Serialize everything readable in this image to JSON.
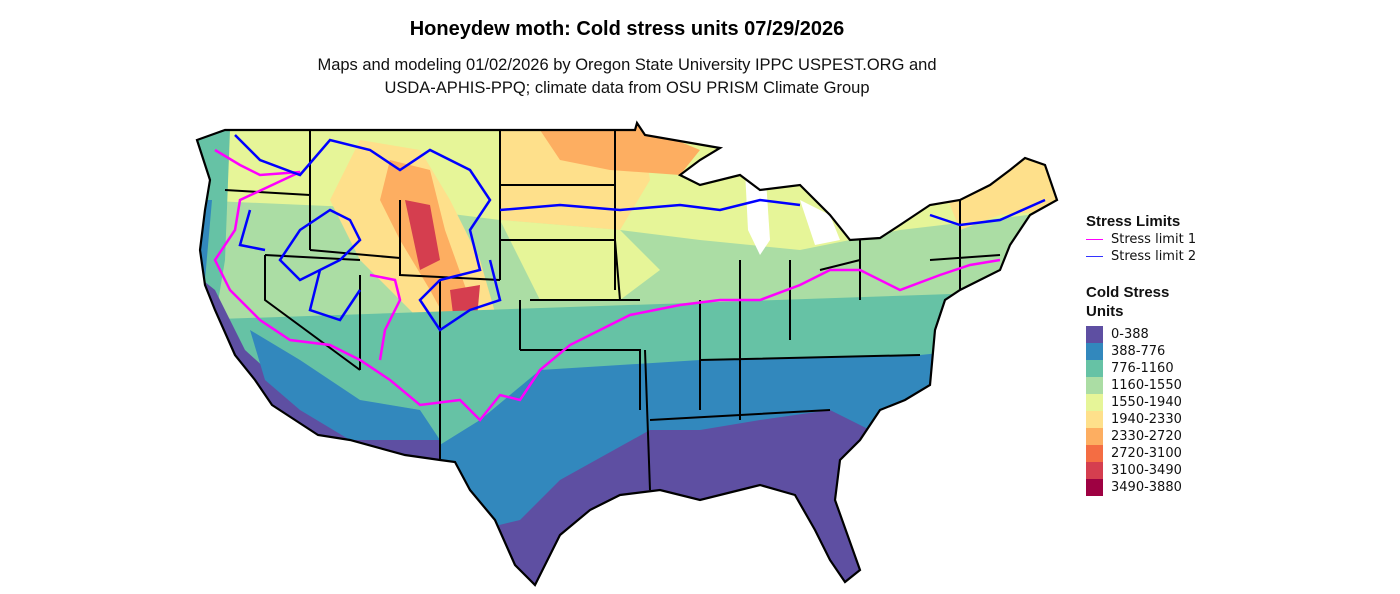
{
  "title": "Honeydew moth: Cold stress units 07/29/2026",
  "subtitle_line1": "Maps and modeling 01/02/2026 by Oregon State University IPPC USPEST.ORG and",
  "subtitle_line2": "USDA-APHIS-PPQ; climate data from OSU PRISM Climate Group",
  "stress_legend": {
    "title": "Stress Limits",
    "items": [
      {
        "label": "Stress limit 1",
        "color": "#FF00FF"
      },
      {
        "label": "Stress limit 2",
        "color": "#0000FF"
      }
    ]
  },
  "csu_legend": {
    "title_line1": "Cold Stress",
    "title_line2": "Units",
    "items": [
      {
        "label": "0-388",
        "color": "#5E4FA2"
      },
      {
        "label": "388-776",
        "color": "#3288BD"
      },
      {
        "label": "776-1160",
        "color": "#66C2A5"
      },
      {
        "label": "1160-1550",
        "color": "#ABDDA4"
      },
      {
        "label": "1550-1940",
        "color": "#E6F598"
      },
      {
        "label": "1940-2330",
        "color": "#FEE08B"
      },
      {
        "label": "2330-2720",
        "color": "#FDAE61"
      },
      {
        "label": "2720-3100",
        "color": "#F46D43"
      },
      {
        "label": "3100-3490",
        "color": "#D53E4F"
      },
      {
        "label": "3490-3880",
        "color": "#9E0142"
      }
    ]
  }
}
